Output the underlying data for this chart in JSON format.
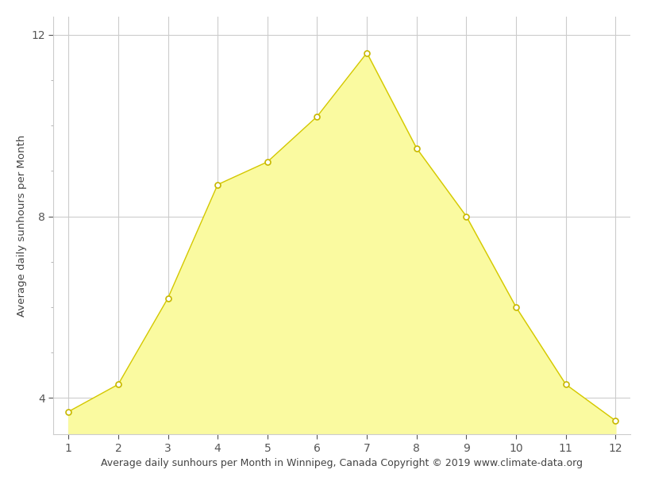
{
  "months": [
    1,
    2,
    3,
    4,
    5,
    6,
    7,
    8,
    9,
    10,
    11,
    12
  ],
  "sunhours": [
    3.7,
    4.3,
    6.2,
    8.7,
    9.2,
    10.2,
    11.6,
    9.5,
    8.0,
    6.0,
    4.3,
    3.5
  ],
  "fill_color": "#FAFAA0",
  "line_color": "#D4C800",
  "marker_facecolor": "white",
  "marker_edgecolor": "#C8B800",
  "xlabel": "Average daily sunhours per Month in Winnipeg, Canada Copyright © 2019 www.climate-data.org",
  "ylabel": "Average daily sunhours per Month",
  "ylim": [
    3.2,
    12.4
  ],
  "xlim": [
    0.7,
    12.3
  ],
  "yticks": [
    4,
    8,
    12
  ],
  "xticks": [
    1,
    2,
    3,
    4,
    5,
    6,
    7,
    8,
    9,
    10,
    11,
    12
  ],
  "background_color": "#ffffff",
  "grid_color": "#cccccc",
  "xlabel_fontsize": 9,
  "ylabel_fontsize": 9.5,
  "tick_fontsize": 10,
  "figsize": [
    8.15,
    6.11
  ],
  "dpi": 100
}
